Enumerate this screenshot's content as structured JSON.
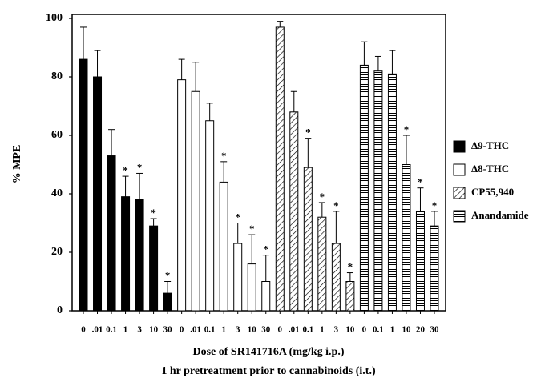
{
  "chart_data": {
    "type": "bar",
    "y_label": "% MPE",
    "x_label": "Dose of SR141716A (mg/kg  i.p.)",
    "x_label_2": "1 hr pretreatment prior to cannabinoids (i.t.)",
    "ylim": [
      0,
      100
    ],
    "yticks": [
      0,
      20,
      40,
      60,
      80,
      100
    ],
    "legend": "right",
    "series": [
      {
        "name": "Δ9-THC",
        "color": "#000000",
        "pattern": "solid",
        "categories": [
          "0",
          ".01",
          "0.1",
          "1",
          "3",
          "10",
          "30"
        ],
        "values": [
          86,
          80,
          53,
          39,
          38,
          29,
          6
        ],
        "errors": [
          11,
          9,
          9,
          7,
          9,
          2.5,
          4
        ],
        "significance": [
          null,
          null,
          null,
          "*",
          "*",
          "*",
          "*"
        ]
      },
      {
        "name": "Δ8-THC",
        "color": "#000000",
        "pattern": "open",
        "categories": [
          "0",
          ".01",
          "0.1",
          "1",
          "3",
          "10",
          "30"
        ],
        "values": [
          79,
          75,
          65,
          44,
          23,
          16,
          10
        ],
        "errors": [
          7,
          10,
          6,
          7,
          7,
          10,
          9
        ],
        "significance": [
          null,
          null,
          null,
          "*",
          "*",
          "*",
          "*"
        ]
      },
      {
        "name": "CP55,940",
        "color": "#000000",
        "pattern": "diagonal",
        "categories": [
          "0",
          ".01",
          "0.1",
          "1",
          "3",
          "10"
        ],
        "values": [
          97,
          68,
          49,
          32,
          23,
          10
        ],
        "errors": [
          2,
          7,
          10,
          5,
          11,
          3
        ],
        "significance": [
          null,
          null,
          "*",
          "*",
          "*",
          "*"
        ]
      },
      {
        "name": "Anandamide",
        "color": "#000000",
        "pattern": "horizontal",
        "categories": [
          "0",
          "0.1",
          "1",
          "10",
          "20",
          "30"
        ],
        "values": [
          84,
          82,
          81,
          50,
          34,
          29
        ],
        "errors": [
          8,
          5,
          8,
          10,
          8,
          5
        ],
        "significance": [
          null,
          null,
          null,
          "*",
          "*",
          "*"
        ]
      }
    ]
  }
}
